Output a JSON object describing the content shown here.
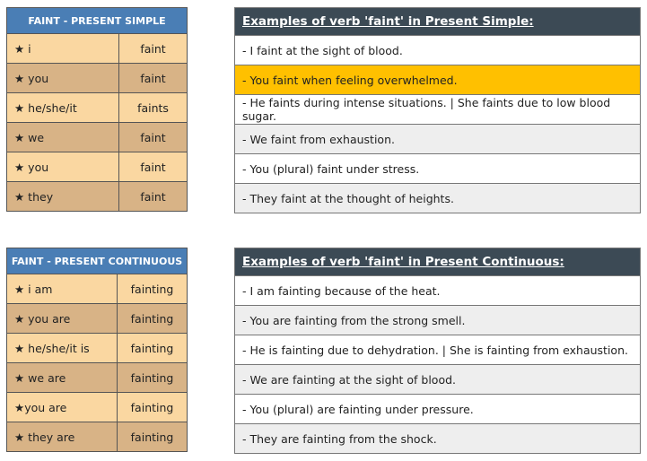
{
  "simple": {
    "title": "FAINT - PRESENT SIMPLE",
    "rows": [
      {
        "pronoun": "★ i",
        "verb": "faint"
      },
      {
        "pronoun": "★ you",
        "verb": "faint"
      },
      {
        "pronoun": "★ he/she/it",
        "verb": "faints"
      },
      {
        "pronoun": "★ we",
        "verb": "faint"
      },
      {
        "pronoun": "★ you",
        "verb": "faint"
      },
      {
        "pronoun": "★ they",
        "verb": "faint"
      }
    ],
    "examples_title": "Examples of verb 'faint' in Present Simple:",
    "examples": [
      "- I faint at the sight of blood.",
      "- You faint when feeling overwhelmed.",
      "- He faints during intense situations. | She faints due to low blood sugar.",
      "- We faint from exhaustion.",
      "- You (plural) faint under stress.",
      "- They faint at the thought of heights."
    ]
  },
  "continuous": {
    "title": "FAINT - PRESENT CONTINUOUS",
    "rows": [
      {
        "pronoun": "★ i am",
        "verb": "fainting"
      },
      {
        "pronoun": "★ you are",
        "verb": "fainting"
      },
      {
        "pronoun": "★ he/she/it is",
        "verb": "fainting"
      },
      {
        "pronoun": "★ we are",
        "verb": "fainting"
      },
      {
        "pronoun": "★you are",
        "verb": "fainting"
      },
      {
        "pronoun": "★ they are",
        "verb": "fainting"
      }
    ],
    "examples_title": "Examples of verb 'faint' in Present Continuous:",
    "examples": [
      "- I am fainting because of the heat.",
      "- You are fainting from the strong smell.",
      "- He is fainting due to dehydration. | She is fainting from exhaustion.",
      "- We are fainting at the sight of blood.",
      "- You (plural) are fainting under pressure.",
      "- They are fainting from the shock."
    ]
  },
  "colors": {
    "header_blue": "#4a7eb5",
    "row_light": "#fad7a1",
    "row_dark": "#d8b386",
    "example_header": "#3c4a55",
    "highlight": "#ffc000"
  }
}
